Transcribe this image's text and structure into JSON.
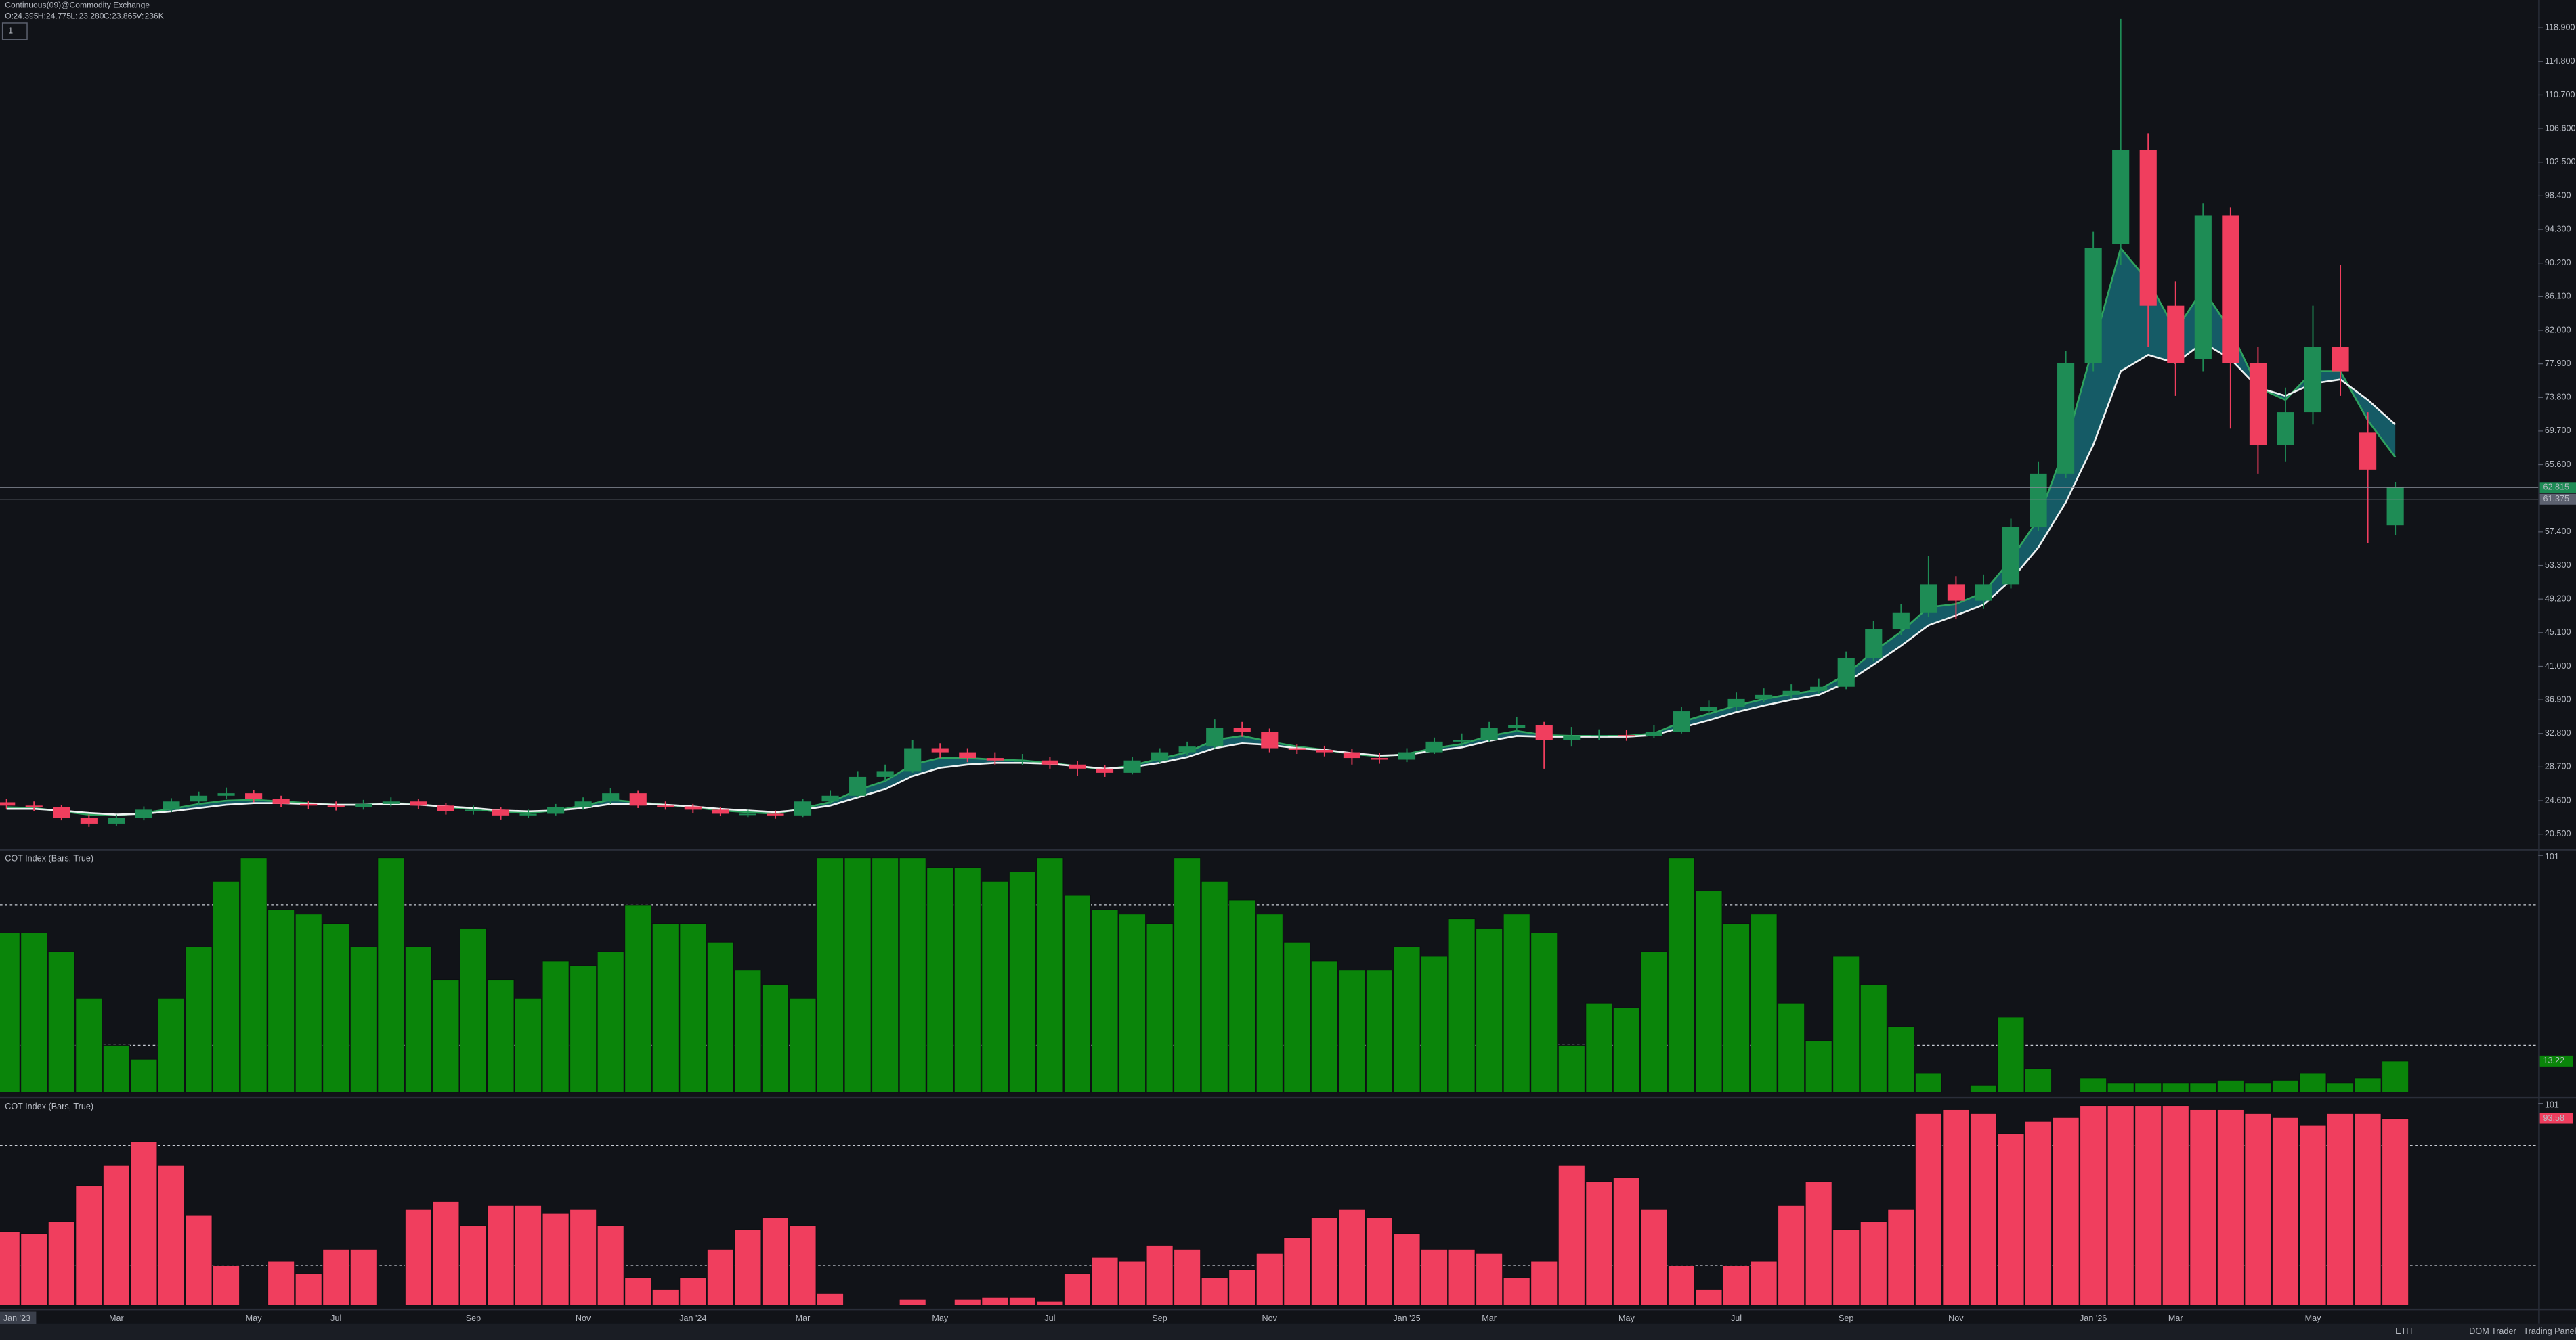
{
  "chart_data": [
    {
      "type": "candlestick",
      "title": "Continuous(09)@Commodity Exchange",
      "ohlc_legend": [
        {
          "label": "O:",
          "value": "24.395"
        },
        {
          "label": "H:",
          "value": "24.775"
        },
        {
          "label": "L:",
          "value": "23.280"
        },
        {
          "label": "C:",
          "value": "23.865"
        },
        {
          "label": "V:",
          "value": "236K"
        }
      ],
      "categories": [
        "Jan '23",
        null,
        null,
        null,
        "Mar",
        null,
        null,
        null,
        null,
        "May",
        null,
        null,
        "Jul",
        null,
        null,
        null,
        null,
        "Sep",
        null,
        null,
        null,
        "Nov",
        null,
        null,
        null,
        "Jan '24",
        null,
        null,
        null,
        "Mar",
        null,
        null,
        null,
        null,
        "May",
        null,
        null,
        null,
        "Jul",
        null,
        null,
        null,
        "Sep",
        null,
        null,
        null,
        "Nov",
        null,
        null,
        null,
        null,
        "Jan '25",
        null,
        null,
        "Mar",
        null,
        null,
        null,
        null,
        "May",
        null,
        null,
        null,
        "Jul",
        null,
        null,
        null,
        "Sep",
        null,
        null,
        null,
        "Nov",
        null,
        null,
        null,
        null,
        "Jan '26",
        null,
        null,
        "Mar",
        null,
        null,
        null,
        null,
        "May",
        null,
        null,
        null
      ],
      "open": [
        24.4,
        24.0,
        23.8,
        22.5,
        21.8,
        22.5,
        23.5,
        24.5,
        25.2,
        25.5,
        24.8,
        24.2,
        24.0,
        23.8,
        24.2,
        24.5,
        24.0,
        23.3,
        23.5,
        22.8,
        23.0,
        23.8,
        24.5,
        25.5,
        24.0,
        23.9,
        23.5,
        23.0,
        23.0,
        22.8,
        24.5,
        25.2,
        27.5,
        28.2,
        31.0,
        30.5,
        29.8,
        29.5,
        29.5,
        29.0,
        28.5,
        28.0,
        29.5,
        30.5,
        31.2,
        33.5,
        33.0,
        31.0,
        30.8,
        30.5,
        29.8,
        29.6,
        30.5,
        31.8,
        32.0,
        33.5,
        33.8,
        32.0,
        32.5,
        32.6,
        32.5,
        33.0,
        35.5,
        36.0,
        37.0,
        37.5,
        38.0,
        38.5,
        42.0,
        45.5,
        47.5,
        51.0,
        49.0,
        51.0,
        58.0,
        64.5,
        78.0,
        92.5,
        104.0,
        85.0,
        78.5,
        96.0,
        78.0,
        68.0,
        72.0,
        80.0,
        69.5,
        58.2
      ],
      "high": [
        24.8,
        24.5,
        24.1,
        22.9,
        22.9,
        23.9,
        24.9,
        25.7,
        26.2,
        25.9,
        25.2,
        24.6,
        24.5,
        24.7,
        25.0,
        24.8,
        24.3,
        24.0,
        23.8,
        23.5,
        24.2,
        25.0,
        26.1,
        25.8,
        24.5,
        24.2,
        23.8,
        23.5,
        23.4,
        24.8,
        25.8,
        28.2,
        29.0,
        32.0,
        31.6,
        31.0,
        30.5,
        30.3,
        29.9,
        29.4,
        28.9,
        29.9,
        31.0,
        31.8,
        34.5,
        34.2,
        33.4,
        31.5,
        31.3,
        30.9,
        30.4,
        31.0,
        32.3,
        32.8,
        34.2,
        34.8,
        34.2,
        33.6,
        33.3,
        33.2,
        33.8,
        36.0,
        36.8,
        37.8,
        38.3,
        38.8,
        39.5,
        42.8,
        46.5,
        48.6,
        54.5,
        52.0,
        52.2,
        59.0,
        66.0,
        79.5,
        94.0,
        120.0,
        106.0,
        88.0,
        97.5,
        97.0,
        80.0,
        75.0,
        85.0,
        90.0,
        72.0,
        63.5
      ],
      "low": [
        23.6,
        23.3,
        22.2,
        21.4,
        21.5,
        22.2,
        23.2,
        24.1,
        24.8,
        24.4,
        23.8,
        23.6,
        23.4,
        23.5,
        23.9,
        23.6,
        22.9,
        22.9,
        22.3,
        22.5,
        22.8,
        23.5,
        24.2,
        23.7,
        23.5,
        23.1,
        22.7,
        22.6,
        22.4,
        22.6,
        24.2,
        25.0,
        27.0,
        28.0,
        29.8,
        29.3,
        29.0,
        28.9,
        28.5,
        27.6,
        27.5,
        27.8,
        29.2,
        30.1,
        31.0,
        32.4,
        30.5,
        30.3,
        30.0,
        29.0,
        29.1,
        29.3,
        30.3,
        31.3,
        31.8,
        33.0,
        28.5,
        31.2,
        32.0,
        31.9,
        32.2,
        32.8,
        35.0,
        35.6,
        36.6,
        37.1,
        37.6,
        38.2,
        41.6,
        44.8,
        47.0,
        46.8,
        48.0,
        50.5,
        57.5,
        64.0,
        77.0,
        90.0,
        80.0,
        74.0,
        77.0,
        70.0,
        64.5,
        66.0,
        70.5,
        74.0,
        56.0,
        57.0
      ],
      "close": [
        24.0,
        23.8,
        22.5,
        21.8,
        22.5,
        23.5,
        24.5,
        25.2,
        25.5,
        24.8,
        24.2,
        24.0,
        23.8,
        24.2,
        24.5,
        24.0,
        23.3,
        23.5,
        22.8,
        23.0,
        23.8,
        24.5,
        25.5,
        24.0,
        23.9,
        23.5,
        23.0,
        23.0,
        22.8,
        24.5,
        25.2,
        27.5,
        28.2,
        31.0,
        30.5,
        29.8,
        29.5,
        29.5,
        29.0,
        28.5,
        28.0,
        29.5,
        30.5,
        31.2,
        33.5,
        33.0,
        31.0,
        30.8,
        30.5,
        29.8,
        29.6,
        30.5,
        31.8,
        32.0,
        33.5,
        33.8,
        32.0,
        32.5,
        32.6,
        32.5,
        33.0,
        35.5,
        36.0,
        37.0,
        37.5,
        38.0,
        38.5,
        42.0,
        45.5,
        47.5,
        51.0,
        49.0,
        51.0,
        58.0,
        64.5,
        78.0,
        92.0,
        104.0,
        85.0,
        78.0,
        96.0,
        78.0,
        68.0,
        72.0,
        80.0,
        77.0,
        65.0,
        62.815
      ],
      "up_color": "#1e8c55",
      "down_color": "#f03e5e",
      "overlays": [
        {
          "color": "#2fa35f",
          "values": [
            23.8,
            23.7,
            23.3,
            22.9,
            22.8,
            23.1,
            23.6,
            24.2,
            24.6,
            24.7,
            24.5,
            24.3,
            24.1,
            24.1,
            24.3,
            24.2,
            23.8,
            23.6,
            23.2,
            23.1,
            23.4,
            24.0,
            24.7,
            24.4,
            24.1,
            23.8,
            23.4,
            23.2,
            23.0,
            23.7,
            24.4,
            25.9,
            27.0,
            29.0,
            29.8,
            29.8,
            29.6,
            29.5,
            29.2,
            28.8,
            28.4,
            28.9,
            29.7,
            30.5,
            32.0,
            32.5,
            31.8,
            31.2,
            30.8,
            30.3,
            30.0,
            30.3,
            31.0,
            31.5,
            32.5,
            33.1,
            32.6,
            32.5,
            32.5,
            32.5,
            32.8,
            34.2,
            35.2,
            36.2,
            37.0,
            37.6,
            38.1,
            40.0,
            42.8,
            45.2,
            48.2,
            48.6,
            50.0,
            54.0,
            59.0,
            68.0,
            80.0,
            92.0,
            88.0,
            82.0,
            87.0,
            82.0,
            75.0,
            73.5,
            77.0,
            77.0,
            71.0,
            66.5
          ]
        },
        {
          "color": "#eef2f2",
          "values": [
            23.6,
            23.6,
            23.4,
            23.1,
            22.9,
            23.0,
            23.3,
            23.7,
            24.1,
            24.3,
            24.3,
            24.2,
            24.1,
            24.1,
            24.2,
            24.1,
            23.9,
            23.7,
            23.4,
            23.3,
            23.4,
            23.7,
            24.2,
            24.2,
            24.1,
            23.9,
            23.6,
            23.4,
            23.2,
            23.5,
            24.0,
            25.0,
            26.0,
            27.6,
            28.6,
            29.0,
            29.2,
            29.2,
            29.1,
            28.8,
            28.5,
            28.7,
            29.2,
            29.9,
            31.0,
            31.6,
            31.4,
            31.0,
            30.8,
            30.4,
            30.1,
            30.2,
            30.7,
            31.1,
            31.9,
            32.5,
            32.4,
            32.4,
            32.4,
            32.4,
            32.6,
            33.5,
            34.4,
            35.4,
            36.2,
            36.9,
            37.5,
            39.0,
            41.2,
            43.5,
            46.0,
            47.2,
            48.5,
            51.5,
            55.5,
            61.0,
            68.0,
            77.0,
            79.0,
            78.0,
            80.5,
            78.5,
            75.0,
            74.0,
            75.5,
            76.0,
            73.5,
            70.5
          ]
        }
      ],
      "band_color": "#1a98a8",
      "price_lines": [
        62.815,
        61.375
      ],
      "price_line_colors": [
        "#1e8c55",
        "#5d6270"
      ],
      "ylim": [
        18.7,
        122.3
      ],
      "yticks": [
        {
          "value": 20.5,
          "label": "20.500"
        },
        {
          "value": 24.6,
          "label": "24.600"
        },
        {
          "value": 28.7,
          "label": "28.700"
        },
        {
          "value": 32.8,
          "label": "32.800"
        },
        {
          "value": 36.9,
          "label": "36.900"
        },
        {
          "value": 41.0,
          "label": "41.000"
        },
        {
          "value": 45.1,
          "label": "45.100"
        },
        {
          "value": 49.2,
          "label": "49.200"
        },
        {
          "value": 53.3,
          "label": "53.300"
        },
        {
          "value": 57.4,
          "label": "57.400"
        },
        {
          "value": 65.6,
          "label": "65.600"
        },
        {
          "value": 69.7,
          "label": "69.700"
        },
        {
          "value": 73.8,
          "label": "73.800"
        },
        {
          "value": 77.9,
          "label": "77.900"
        },
        {
          "value": 82.0,
          "label": "82.000"
        },
        {
          "value": 86.1,
          "label": "86.100"
        },
        {
          "value": 90.2,
          "label": "90.200"
        },
        {
          "value": 94.3,
          "label": "94.300"
        },
        {
          "value": 98.4,
          "label": "98.400"
        },
        {
          "value": 102.5,
          "label": "102.500"
        },
        {
          "value": 106.6,
          "label": "106.600"
        },
        {
          "value": 110.7,
          "label": "110.700"
        },
        {
          "value": 114.8,
          "label": "114.800"
        },
        {
          "value": 118.9,
          "label": "118.900"
        }
      ]
    },
    {
      "type": "bar",
      "title": "COT Index (Bars, True)",
      "color": "#0a850a",
      "values": [
        68,
        68,
        60,
        40,
        20,
        14,
        40,
        62,
        90,
        100,
        78,
        76,
        72,
        62,
        100,
        62,
        48,
        70,
        48,
        40,
        56,
        54,
        60,
        80,
        72,
        72,
        64,
        52,
        46,
        40,
        100,
        100,
        100,
        100,
        96,
        96,
        90,
        94,
        100,
        84,
        78,
        76,
        72,
        100,
        90,
        82,
        76,
        64,
        56,
        52,
        52,
        62,
        58,
        74,
        70,
        76,
        68,
        20,
        38,
        36,
        60,
        100,
        86,
        72,
        76,
        38,
        22,
        58,
        46,
        28,
        8,
        0,
        3,
        32,
        10,
        0,
        6,
        4,
        4,
        4,
        4,
        5,
        4,
        5,
        8,
        4,
        6,
        13.22
      ],
      "ylim": [
        0,
        101
      ],
      "yticks": [
        101
      ],
      "levels": [
        20,
        80
      ]
    },
    {
      "type": "bar",
      "title": "COT Index (Bars, True)",
      "color": "#f03e5e",
      "values": [
        37,
        36,
        42,
        60,
        70,
        82,
        70,
        45,
        20,
        0,
        22,
        16,
        28,
        28,
        0,
        48,
        52,
        40,
        50,
        50,
        46,
        48,
        40,
        14,
        8,
        14,
        28,
        38,
        44,
        40,
        6,
        0,
        0,
        3,
        0,
        3,
        4,
        4,
        2,
        16,
        24,
        22,
        30,
        28,
        14,
        18,
        26,
        34,
        44,
        48,
        44,
        36,
        28,
        28,
        26,
        14,
        22,
        70,
        62,
        64,
        48,
        20,
        8,
        20,
        22,
        50,
        62,
        38,
        42,
        48,
        96,
        98,
        96,
        86,
        92,
        94,
        100,
        100,
        100,
        100,
        98,
        98,
        96,
        94,
        90,
        96,
        96,
        93.58
      ],
      "ylim": [
        0,
        101
      ],
      "yticks": [
        101
      ],
      "levels": [
        20,
        80
      ]
    }
  ],
  "toolbar": {
    "timeframe": "1",
    "session": "ETH",
    "buttons": [
      "DOM Trader",
      "Trading Panel"
    ]
  }
}
